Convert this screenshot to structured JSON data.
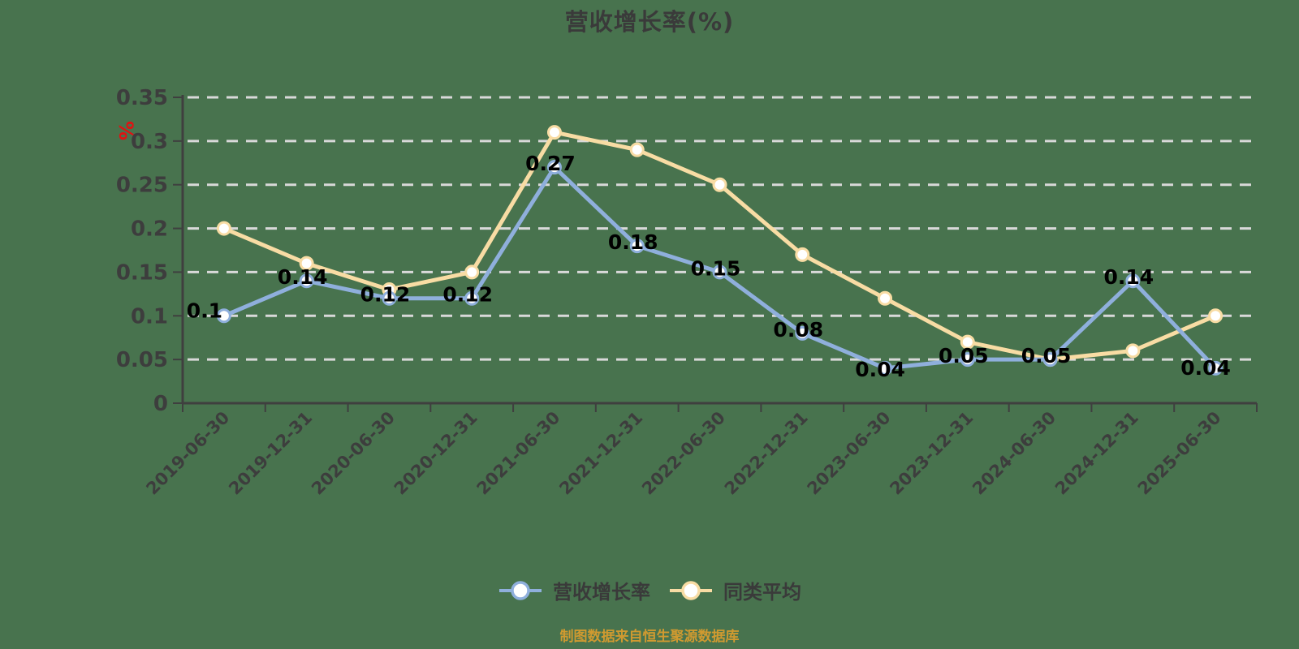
{
  "title": "营收增长率(%)",
  "y_axis_unit": "%",
  "footer": "制图数据来自恒生聚源数据库",
  "colors": {
    "background": "#48734e",
    "title_text": "#3a3a3a",
    "axis": "#3f3f3f",
    "tick_label": "#3d3d3d",
    "gridline": "#d9d9d9",
    "data_label": "#000000",
    "unit_label": "#e01212",
    "footer_text": "#d09a30",
    "legend_text": "#3a3a3a",
    "series_revenue_growth": "#8fafdc",
    "series_peer_average": "#f8dca4",
    "marker_fill": "#ffffff"
  },
  "legend": {
    "items": [
      {
        "label": "营收增长率",
        "color": "#8fafdc"
      },
      {
        "label": "同类平均",
        "color": "#f8dca4"
      }
    ]
  },
  "chart_data": {
    "type": "line",
    "title": "营收增长率(%)",
    "xlabel": "",
    "ylabel": "%",
    "categories": [
      "2019-06-30",
      "2019-12-31",
      "2020-06-30",
      "2020-12-31",
      "2021-06-30",
      "2021-12-31",
      "2022-06-30",
      "2022-12-31",
      "2023-06-30",
      "2023-12-31",
      "2024-06-30",
      "2024-12-31",
      "2025-06-30"
    ],
    "series": [
      {
        "name": "营收增长率",
        "color": "#8fafdc",
        "values": [
          0.1,
          0.14,
          0.12,
          0.12,
          0.27,
          0.18,
          0.15,
          0.08,
          0.04,
          0.05,
          0.05,
          0.14,
          0.04
        ],
        "point_labels": [
          "0.1",
          "0.14",
          "0.12",
          "0.12",
          "0.27",
          "0.18",
          "0.15",
          "0.08",
          "0.04",
          "0.05",
          "0.05",
          "0.14",
          "0.04"
        ]
      },
      {
        "name": "同类平均",
        "color": "#f8dca4",
        "values": [
          0.2,
          0.16,
          0.13,
          0.15,
          0.31,
          0.29,
          0.25,
          0.17,
          0.12,
          0.07,
          0.05,
          0.06,
          0.1
        ]
      }
    ],
    "ylim": [
      0,
      0.35
    ],
    "y_ticks": [
      0,
      0.05,
      0.1,
      0.15,
      0.2,
      0.25,
      0.3,
      0.35
    ],
    "y_tick_labels": [
      "0",
      "0.05",
      "0.1",
      "0.15",
      "0.2",
      "0.25",
      "0.3",
      "0.35"
    ],
    "grid": true,
    "grid_style": "dashed",
    "legend_position": "bottom",
    "x_label_rotation": -45
  }
}
